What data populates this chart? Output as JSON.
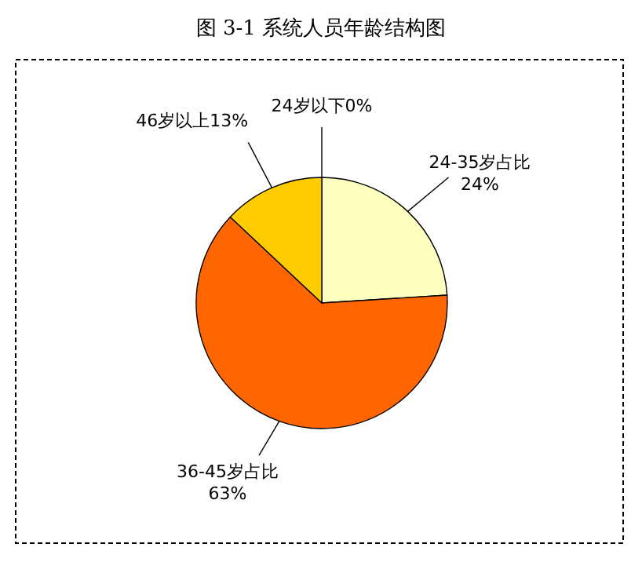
{
  "chart_data": {
    "type": "pie",
    "title": "图 3-1 系统人员年龄结构图",
    "categories": [
      "24岁以下",
      "24-35岁占比",
      "36-45岁占比",
      "46岁以上"
    ],
    "values": [
      0,
      24,
      63,
      13
    ],
    "value_labels": [
      "0%",
      "24%",
      "63%",
      "13%"
    ],
    "colors": [
      "#ffffff",
      "#ffffc0",
      "#ff6600",
      "#ffcc00"
    ]
  }
}
